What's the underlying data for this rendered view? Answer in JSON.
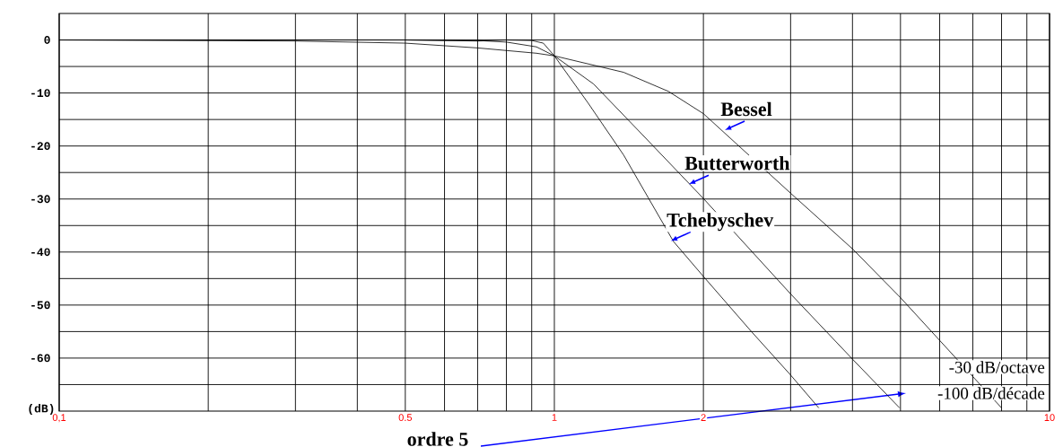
{
  "chart_data": {
    "type": "line",
    "ylabel": "(dB)",
    "log": "x",
    "grid": true,
    "xlim": [
      0.1,
      10
    ],
    "ylim": [
      -70,
      5
    ],
    "xticks": [
      {
        "value": 0.1,
        "label": "0,1"
      },
      {
        "value": 0.2,
        "label": null
      },
      {
        "value": 0.3,
        "label": null
      },
      {
        "value": 0.4,
        "label": null
      },
      0.5,
      {
        "value": 0.6,
        "label": null
      },
      {
        "value": 0.7,
        "label": null
      },
      {
        "value": 0.8,
        "label": null
      },
      {
        "value": 0.9,
        "label": null
      },
      1,
      2,
      {
        "value": 3,
        "label": null
      },
      {
        "value": 4,
        "label": null
      },
      {
        "value": 5,
        "label": null
      },
      {
        "value": 6,
        "label": null
      },
      {
        "value": 7,
        "label": null
      },
      {
        "value": 8,
        "label": null
      },
      {
        "value": 9,
        "label": null
      },
      10
    ],
    "yticks": [
      -60,
      {
        "value": -65,
        "label": null
      },
      {
        "value": -55,
        "label": null
      },
      -50,
      {
        "value": -45,
        "label": null
      },
      -40,
      {
        "value": -35,
        "label": null
      },
      -30,
      {
        "value": -25,
        "label": null
      },
      -20,
      {
        "value": -15,
        "label": null
      },
      -10,
      {
        "value": -5,
        "label": null
      },
      0
    ],
    "series": [
      {
        "color": "#000000",
        "x": [
          0.1,
          0.3,
          0.5,
          0.7,
          0.8,
          0.9,
          0.95,
          1,
          1.17,
          1.38,
          1.74,
          2,
          2.5,
          3,
          3.42
        ],
        "values": [
          0,
          0,
          0,
          -0.2,
          0,
          -0.1,
          -0.6,
          -3,
          -11.9,
          -21.7,
          -38,
          -44.6,
          -55,
          -63.2,
          -69.4
        ]
      },
      {
        "color": "#000000",
        "x": [
          0.1,
          0.5,
          0.7,
          0.8,
          0.92,
          1,
          1.2,
          1.5,
          2,
          3,
          4,
          4.98
        ],
        "values": [
          0,
          0,
          -0.1,
          -0.4,
          -1.3,
          -3,
          -8.3,
          -17.7,
          -29.9,
          -47.9,
          -60.2,
          -69.4
        ]
      },
      {
        "color": "#000000",
        "x": [
          0.1,
          0.3,
          0.5,
          0.7,
          0.92,
          1,
          1.38,
          1.7,
          2,
          3,
          4,
          5,
          8
        ],
        "values": [
          0,
          -0.2,
          -0.6,
          -1.5,
          -2.5,
          -3,
          -6.1,
          -9.7,
          -13.9,
          -28.9,
          -39.4,
          -48.6,
          -69.4
        ]
      }
    ],
    "annotations": [
      {
        "text": "Bessel",
        "x": 2.21,
        "y": -17
      },
      {
        "text": "Butterworth",
        "x": 1.87,
        "y": -27.2
      },
      {
        "text": "Tchebyschev",
        "x": 1.72,
        "y": -37.9
      },
      "-30 dB/octave",
      "-100 dB/décade",
      "ordre 5"
    ]
  }
}
